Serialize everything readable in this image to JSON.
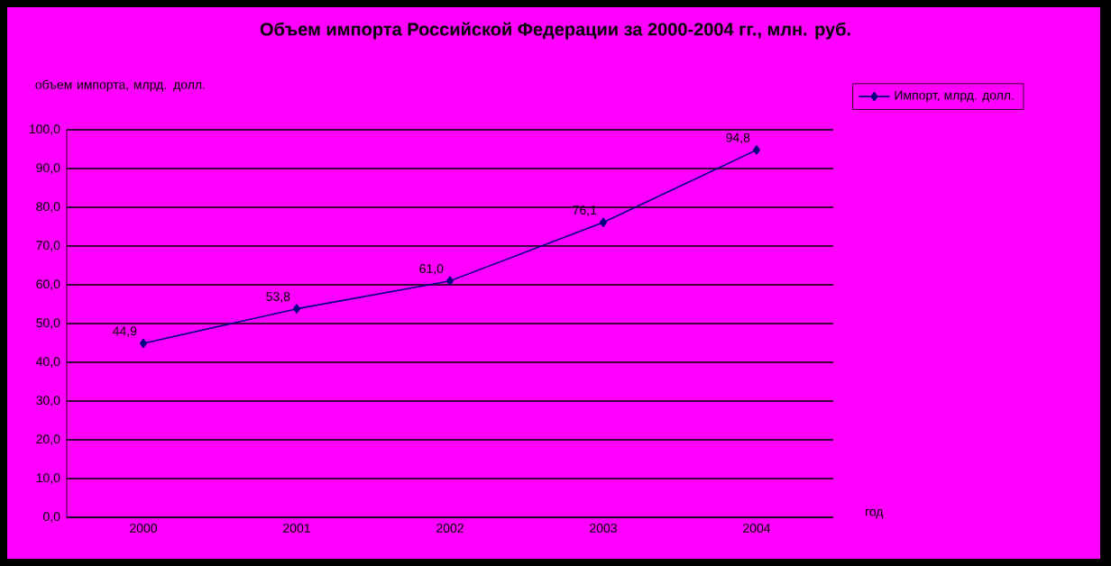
{
  "chart_data": {
    "type": "line",
    "title": "Объем импорта Российской Федерации за 2000-2004 гг., млн. руб.",
    "ylabel": "объем импорта, млрд. долл.",
    "xlabel": "год",
    "categories": [
      "2000",
      "2001",
      "2002",
      "2003",
      "2004"
    ],
    "series": [
      {
        "name": "Импорт, млрд. долл.",
        "color": "#000080",
        "values": [
          44.9,
          53.8,
          61.0,
          76.1,
          94.8
        ],
        "value_labels": [
          "44,9",
          "53,8",
          "61,0",
          "76,1",
          "94,8"
        ]
      }
    ],
    "ylim": [
      0,
      100
    ],
    "yticks": [
      {
        "value": 0,
        "label": "0,0"
      },
      {
        "value": 10,
        "label": "10,0"
      },
      {
        "value": 20,
        "label": "20,0"
      },
      {
        "value": 30,
        "label": "30,0"
      },
      {
        "value": 40,
        "label": "40,0"
      },
      {
        "value": 50,
        "label": "50,0"
      },
      {
        "value": 60,
        "label": "60,0"
      },
      {
        "value": 70,
        "label": "70,0"
      },
      {
        "value": 80,
        "label": "80,0"
      },
      {
        "value": 90,
        "label": "90,0"
      },
      {
        "value": 100,
        "label": "100,0"
      }
    ],
    "grid": "y",
    "legend": "top right",
    "marker": "diamond",
    "line_style": "solid"
  }
}
